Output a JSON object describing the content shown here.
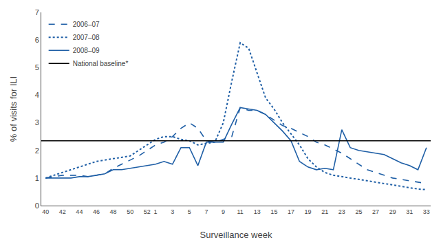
{
  "chart_data": {
    "type": "line",
    "xlabel": "Surveillance week",
    "ylabel": "% of visits for ILI",
    "categories": [
      "40",
      null,
      "42",
      null,
      "44",
      null,
      "46",
      null,
      "48",
      null,
      "50",
      null,
      "52",
      "1",
      null,
      "3",
      null,
      "5",
      null,
      "7",
      null,
      "9",
      null,
      "11",
      null,
      "13",
      null,
      "15",
      null,
      "17",
      null,
      "19",
      null,
      "21",
      null,
      "23",
      null,
      "25",
      null,
      "27",
      null,
      "29",
      null,
      "31",
      null,
      "33"
    ],
    "series": [
      {
        "name": "2006–07",
        "color": "#1f5fa6",
        "line_style": "dash",
        "values": [
          1.0,
          1.05,
          1.1,
          1.1,
          1.1,
          1.05,
          1.1,
          1.15,
          1.35,
          1.5,
          1.65,
          1.8,
          2.0,
          2.2,
          2.3,
          2.5,
          2.8,
          3.0,
          2.8,
          2.35,
          2.3,
          2.4,
          2.5,
          3.55,
          3.45,
          3.45,
          3.3,
          3.1,
          2.9,
          2.8,
          2.65,
          2.5,
          2.3,
          2.2,
          2.05,
          1.9,
          1.7,
          1.5,
          1.3,
          1.2,
          1.1,
          1.0,
          0.95,
          0.9,
          0.85,
          0.8
        ]
      },
      {
        "name": "2007–08",
        "color": "#1f5fa6",
        "line_style": "dot",
        "values": [
          1.0,
          1.1,
          1.2,
          1.3,
          1.4,
          1.5,
          1.6,
          1.65,
          1.7,
          1.75,
          1.8,
          2.0,
          2.2,
          2.4,
          2.5,
          2.5,
          2.4,
          2.35,
          2.2,
          2.25,
          2.3,
          3.0,
          4.5,
          5.9,
          5.7,
          4.8,
          3.9,
          3.5,
          3.0,
          2.6,
          2.2,
          1.7,
          1.4,
          1.2,
          1.1,
          1.05,
          1.0,
          0.95,
          0.9,
          0.85,
          0.8,
          0.75,
          0.7,
          0.65,
          0.6,
          0.58
        ]
      },
      {
        "name": "2008–09",
        "color": "#1f5fa6",
        "line_style": "solid",
        "values": [
          1.0,
          1.0,
          1.0,
          1.0,
          1.05,
          1.05,
          1.1,
          1.15,
          1.3,
          1.3,
          1.35,
          1.4,
          1.45,
          1.5,
          1.6,
          1.5,
          2.1,
          2.1,
          1.45,
          2.3,
          2.3,
          2.3,
          2.95,
          3.55,
          3.5,
          3.45,
          3.3,
          3.0,
          2.7,
          2.35,
          1.6,
          1.4,
          1.3,
          1.35,
          1.3,
          2.75,
          2.1,
          2.0,
          1.95,
          1.9,
          1.85,
          1.7,
          1.55,
          1.45,
          1.3,
          2.1
        ]
      },
      {
        "name": "National baseline*",
        "color": "#000000",
        "line_style": "solid",
        "type": "hline",
        "y": 2.35
      }
    ],
    "ylim": [
      0,
      7
    ],
    "yticks": [
      0,
      1,
      2,
      3,
      4,
      5,
      6,
      7
    ],
    "grid": false,
    "legend": "upper left"
  }
}
